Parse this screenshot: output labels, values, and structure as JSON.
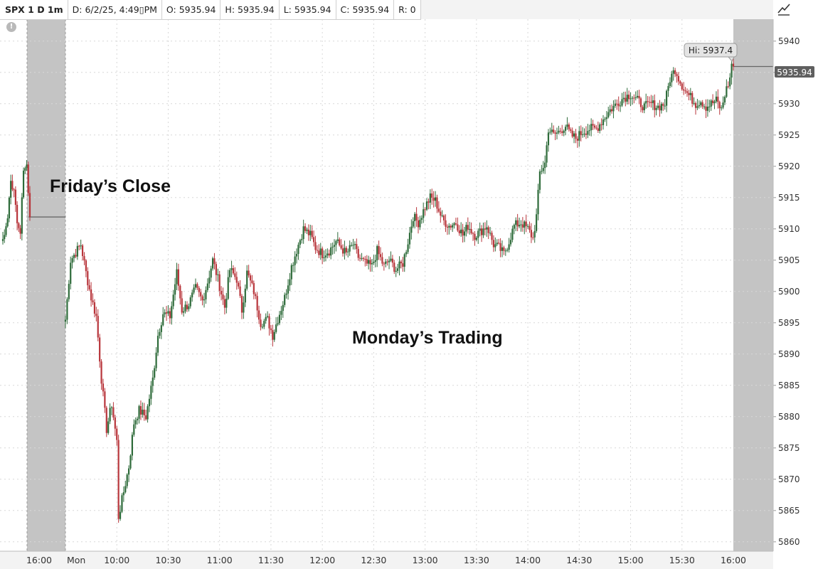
{
  "header": {
    "symbol": "SPX 1 D 1m",
    "date": "D: 6/2/25, 4:49▯PM",
    "open": "O: 5935.94",
    "high": "H: 5935.94",
    "low": "L: 5935.94",
    "close": "C: 5935.94",
    "range": "R: 0",
    "tool_icon": "draw-line-icon"
  },
  "info_icon": {
    "icon": "exclamation-icon",
    "glyph": "!"
  },
  "colors": {
    "up": "#2e6b3a",
    "down": "#b8353b",
    "session_shade": "#c4c4c4",
    "grid": "#d8d8d8",
    "price_tag": "#5f5f5f",
    "hi_tag": "#e4e4e4"
  },
  "annotations": {
    "friday": "Friday’s Close",
    "monday": "Monday’s Trading"
  },
  "hi_label": "Hi: 5937.4",
  "last_price_label": "5935.94",
  "chart_data": {
    "type": "candlestick",
    "title": "",
    "xlabel": "",
    "ylabel": "",
    "ylim": [
      5858.5,
      5943.5
    ],
    "grid": true,
    "y_ticks": [
      "5860",
      "5865",
      "5870",
      "5875",
      "5880",
      "5885",
      "5890",
      "5895",
      "5900",
      "5905",
      "5910",
      "5915",
      "5920",
      "5925",
      "5930",
      "5935",
      "5940"
    ],
    "x_ticks": [
      "16:00",
      "Mon",
      "10:00",
      "10:30",
      "11:00",
      "11:30",
      "12:00",
      "12:30",
      "13:00",
      "13:30",
      "14:00",
      "14:30",
      "15:00",
      "15:30",
      "16:00"
    ],
    "friday_close": 5911.9,
    "last_price": 5935.94,
    "session_high": 5937.4,
    "monday_close_path": [
      [
        "9:30",
        5895.5
      ],
      [
        "9:33",
        5905.0
      ],
      [
        "9:39",
        5907.5
      ],
      [
        "9:42",
        5903.0
      ],
      [
        "9:45",
        5899.0
      ],
      [
        "9:48",
        5896.0
      ],
      [
        "9:51",
        5886.0
      ],
      [
        "9:54",
        5878.0
      ],
      [
        "9:57",
        5882.0
      ],
      [
        "10:00",
        5876.0
      ],
      [
        "10:01",
        5864.0
      ],
      [
        "10:04",
        5868.0
      ],
      [
        "10:07",
        5872.0
      ],
      [
        "10:10",
        5879.0
      ],
      [
        "10:13",
        5881.0
      ],
      [
        "10:17",
        5880.0
      ],
      [
        "10:21",
        5886.0
      ],
      [
        "10:24",
        5893.0
      ],
      [
        "10:27",
        5896.5
      ],
      [
        "10:31",
        5896.0
      ],
      [
        "10:35",
        5903.0
      ],
      [
        "10:38",
        5897.0
      ],
      [
        "10:42",
        5898.0
      ],
      [
        "10:46",
        5900.5
      ],
      [
        "10:50",
        5898.5
      ],
      [
        "10:53",
        5901.5
      ],
      [
        "10:56",
        5905.0
      ],
      [
        "10:59",
        5902.0
      ],
      [
        "11:03",
        5897.5
      ],
      [
        "11:06",
        5903.5
      ],
      [
        "11:10",
        5902.0
      ],
      [
        "11:13",
        5897.0
      ],
      [
        "11:16",
        5903.0
      ],
      [
        "11:20",
        5900.0
      ],
      [
        "11:24",
        5895.0
      ],
      [
        "11:28",
        5895.5
      ],
      [
        "11:31",
        5893.0
      ],
      [
        "11:35",
        5896.5
      ],
      [
        "11:38",
        5899.0
      ],
      [
        "11:42",
        5904.0
      ],
      [
        "11:46",
        5907.5
      ],
      [
        "11:49",
        5910.0
      ],
      [
        "11:53",
        5909.0
      ],
      [
        "11:56",
        5907.0
      ],
      [
        "12:00",
        5906.0
      ],
      [
        "12:04",
        5906.5
      ],
      [
        "12:08",
        5908.0
      ],
      [
        "12:11",
        5907.0
      ],
      [
        "12:14",
        5906.0
      ],
      [
        "12:18",
        5907.5
      ],
      [
        "12:21",
        5905.5
      ],
      [
        "12:25",
        5904.5
      ],
      [
        "12:29",
        5904.0
      ],
      [
        "12:32",
        5906.5
      ],
      [
        "12:36",
        5904.0
      ],
      [
        "12:39",
        5905.0
      ],
      [
        "12:43",
        5903.5
      ],
      [
        "12:47",
        5904.5
      ],
      [
        "12:50",
        5908.0
      ],
      [
        "12:53",
        5912.0
      ],
      [
        "12:56",
        5911.0
      ],
      [
        "13:00",
        5913.5
      ],
      [
        "13:03",
        5915.0
      ],
      [
        "13:06",
        5914.5
      ],
      [
        "13:10",
        5911.5
      ],
      [
        "13:14",
        5910.5
      ],
      [
        "13:18",
        5911.0
      ],
      [
        "13:22",
        5909.0
      ],
      [
        "13:25",
        5910.5
      ],
      [
        "13:29",
        5909.0
      ],
      [
        "13:32",
        5909.5
      ],
      [
        "13:36",
        5910.5
      ],
      [
        "13:40",
        5907.5
      ],
      [
        "13:43",
        5907.0
      ],
      [
        "13:46",
        5906.0
      ],
      [
        "13:49",
        5908.0
      ],
      [
        "13:52",
        5910.5
      ],
      [
        "13:56",
        5911.0
      ],
      [
        "14:00",
        5910.0
      ],
      [
        "14:03",
        5908.5
      ],
      [
        "14:05",
        5912.0
      ],
      [
        "14:07",
        5919.0
      ],
      [
        "14:10",
        5920.5
      ],
      [
        "14:12",
        5926.0
      ],
      [
        "14:15",
        5925.0
      ],
      [
        "14:18",
        5925.5
      ],
      [
        "14:22",
        5926.5
      ],
      [
        "14:25",
        5925.0
      ],
      [
        "14:28",
        5924.5
      ],
      [
        "14:32",
        5925.5
      ],
      [
        "14:36",
        5926.0
      ],
      [
        "14:40",
        5926.0
      ],
      [
        "14:44",
        5927.5
      ],
      [
        "14:48",
        5929.0
      ],
      [
        "14:52",
        5930.0
      ],
      [
        "14:56",
        5931.0
      ],
      [
        "15:00",
        5931.5
      ],
      [
        "15:04",
        5930.5
      ],
      [
        "15:08",
        5929.5
      ],
      [
        "15:12",
        5930.0
      ],
      [
        "15:16",
        5929.5
      ],
      [
        "15:20",
        5930.0
      ],
      [
        "15:23",
        5934.0
      ],
      [
        "15:26",
        5935.5
      ],
      [
        "15:29",
        5933.5
      ],
      [
        "15:32",
        5932.0
      ],
      [
        "15:35",
        5931.0
      ],
      [
        "15:38",
        5930.0
      ],
      [
        "15:41",
        5930.5
      ],
      [
        "15:44",
        5929.5
      ],
      [
        "15:47",
        5930.0
      ],
      [
        "15:50",
        5930.5
      ],
      [
        "15:53",
        5929.0
      ],
      [
        "15:55",
        5931.5
      ],
      [
        "15:58",
        5934.0
      ],
      [
        "15:59",
        5936.5
      ],
      [
        "16:00",
        5935.94
      ]
    ],
    "friday_close_path": [
      [
        "15:43",
        5908.0
      ],
      [
        "15:46",
        5912.0
      ],
      [
        "15:48",
        5918.0
      ],
      [
        "15:50",
        5916.0
      ],
      [
        "15:52",
        5911.0
      ],
      [
        "15:54",
        5910.0
      ],
      [
        "15:56",
        5919.0
      ],
      [
        "15:58",
        5920.0
      ],
      [
        "16:00",
        5911.9
      ]
    ]
  }
}
